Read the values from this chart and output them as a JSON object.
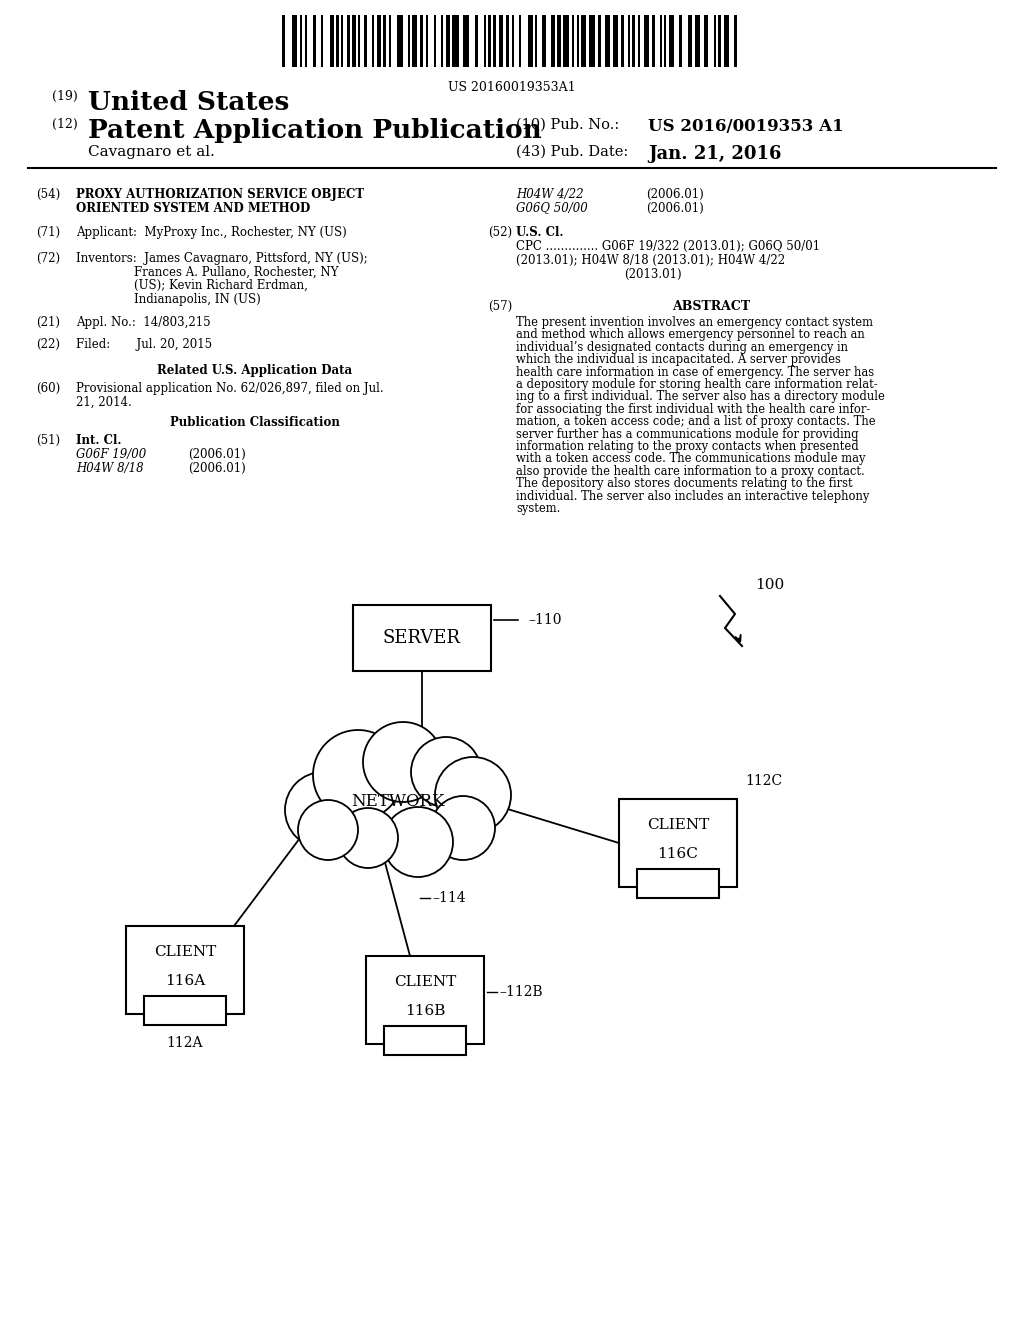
{
  "bg_color": "#ffffff",
  "barcode_text": "US 20160019353A1",
  "title_19_prefix": "(19)",
  "title_19_text": "United States",
  "title_12_prefix": "(12)",
  "title_12_text": "Patent Application Publication",
  "pub_no_label": "(10) Pub. No.:",
  "pub_no_value": "US 2016/0019353 A1",
  "inventor_label": "Cavagnaro et al.",
  "pub_date_label": "(43) Pub. Date:",
  "pub_date_value": "Jan. 21, 2016",
  "field_54_line1": "PROXY AUTHORIZATION SERVICE OBJECT",
  "field_54_line2": "ORIENTED SYSTEM AND METHOD",
  "field_71_text": "Applicant:  MyProxy Inc., Rochester, NY (US)",
  "field_72_line1": "Inventors:  James Cavagnaro, Pittsford, NY (US);",
  "field_72_line2": "Frances A. Pullano, Rochester, NY",
  "field_72_line3": "(US); Kevin Richard Erdman,",
  "field_72_line4": "Indianapolis, IN (US)",
  "field_21_text": "Appl. No.:  14/803,215",
  "field_22_text": "Filed:       Jul. 20, 2015",
  "related_title": "Related U.S. Application Data",
  "field_60_line1": "Provisional application No. 62/026,897, filed on Jul.",
  "field_60_line2": "21, 2014.",
  "pub_class_title": "Publication Classification",
  "int_cl_label": "Int. Cl.",
  "int_cl_1": "G06F 19/00",
  "int_cl_1_date": "(2006.01)",
  "int_cl_2": "H04W 8/18",
  "int_cl_2_date": "(2006.01)",
  "right_ipc1": "H04W 4/22",
  "right_ipc1_date": "(2006.01)",
  "right_ipc2": "G06Q 50/00",
  "right_ipc2_date": "(2006.01)",
  "us_cl_label": "U.S. Cl.",
  "cpc_line1": "CPC .............. G06F 19/322 (2013.01); G06Q 50/01",
  "cpc_line2": "(2013.01); H04W 8/18 (2013.01); H04W 4/22",
  "cpc_line3": "(2013.01)",
  "abstract_title": "ABSTRACT",
  "abstract_lines": [
    "The present invention involves an emergency contact system",
    "and method which allows emergency personnel to reach an",
    "individual’s designated contacts during an emergency in",
    "which the individual is incapacitated. A server provides",
    "health care information in case of emergency. The server has",
    "a depository module for storing health care information relat-",
    "ing to a first individual. The server also has a directory module",
    "for associating the first individual with the health care infor-",
    "mation, a token access code; and a list of proxy contacts. The",
    "server further has a communications module for providing",
    "information relating to the proxy contacts when presented",
    "with a token access code. The communications module may",
    "also provide the health care information to a proxy contact.",
    "The depository also stores documents relating to the first",
    "individual. The server also includes an interactive telephony",
    "system."
  ]
}
